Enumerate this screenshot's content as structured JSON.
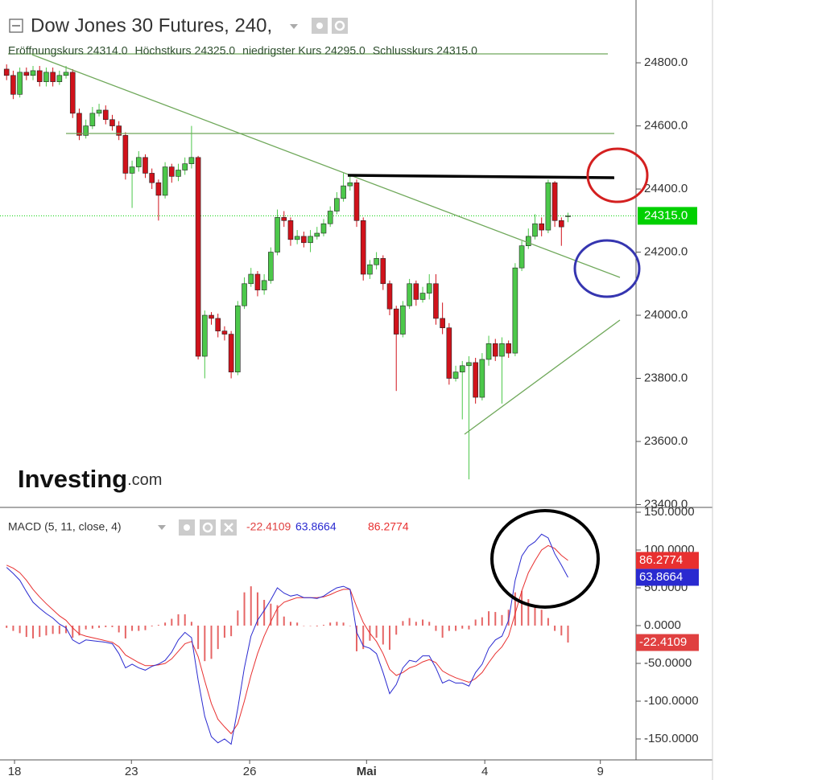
{
  "chart_data": [
    {
      "type": "candlestick",
      "title": "Dow Jones 30 Futures, 240,",
      "ohlc_legend": [
        {
          "label": "Eröffnungskurs",
          "value": "24314.0"
        },
        {
          "label": "Höchstkurs",
          "value": "24325.0"
        },
        {
          "label": "niedrigster Kurs",
          "value": "24295.0"
        },
        {
          "label": "Schlusskurs",
          "value": "24315.0"
        }
      ],
      "open": [
        24780,
        24760,
        24700,
        24770,
        24760,
        24775,
        24740,
        24770,
        24740,
        24760,
        24770,
        24640,
        24570,
        24600,
        24640,
        24650,
        24620,
        24600,
        24570,
        24450,
        24470,
        24500,
        24450,
        24420,
        24380,
        24470,
        24440,
        24460,
        24480,
        24500,
        23870,
        24000,
        23990,
        23950,
        23940,
        23820,
        24030,
        24100,
        24130,
        24080,
        24110,
        24200,
        24310,
        24300,
        24240,
        24250,
        24230,
        24250,
        24260,
        24290,
        24330,
        24370,
        24410,
        24420,
        24300,
        24130,
        24160,
        24180,
        24100,
        24020,
        23940,
        24030,
        24100,
        24050,
        24070,
        24100,
        23990,
        23960,
        23800,
        23820,
        23840,
        23850,
        23740,
        23860,
        23910,
        23870,
        23910,
        23880,
        24150,
        24220,
        24250,
        24290,
        24270,
        24420,
        24300,
        24314
      ],
      "high": [
        24795,
        24775,
        24785,
        24785,
        24790,
        24790,
        24785,
        24785,
        24775,
        24790,
        24780,
        24655,
        24620,
        24660,
        24670,
        24665,
        24635,
        24615,
        24580,
        24490,
        24520,
        24510,
        24465,
        24430,
        24485,
        24480,
        24480,
        24500,
        24600,
        24505,
        24015,
        24010,
        24005,
        23965,
        23950,
        24045,
        24120,
        24150,
        24140,
        24130,
        24215,
        24335,
        24330,
        24310,
        24270,
        24265,
        24270,
        24280,
        24305,
        24345,
        24390,
        24450,
        24440,
        24430,
        24310,
        24175,
        24200,
        24190,
        24110,
        24030,
        24045,
        24115,
        24110,
        24090,
        24130,
        24130,
        24040,
        23975,
        23840,
        23855,
        23870,
        23865,
        23880,
        23935,
        23925,
        23930,
        23920,
        24165,
        24235,
        24275,
        24320,
        24310,
        24430,
        24425,
        24310,
        24325
      ],
      "low": [
        24745,
        24685,
        24690,
        24745,
        24745,
        24725,
        24725,
        24725,
        24730,
        24750,
        24625,
        24555,
        24560,
        24590,
        24630,
        24605,
        24585,
        24555,
        24430,
        24340,
        24455,
        24435,
        24400,
        24300,
        24370,
        24420,
        24425,
        24445,
        24465,
        23860,
        23800,
        23970,
        23930,
        23920,
        23800,
        23810,
        24020,
        24090,
        24060,
        24065,
        24100,
        24190,
        24280,
        24220,
        24225,
        24215,
        24200,
        24240,
        24250,
        24280,
        24320,
        24360,
        24395,
        24280,
        24110,
        24115,
        24145,
        24080,
        24000,
        23760,
        23930,
        24020,
        24030,
        24040,
        24050,
        23970,
        23940,
        23780,
        23790,
        23670,
        23480,
        23720,
        23730,
        23840,
        23855,
        23720,
        23865,
        23870,
        24140,
        24210,
        24240,
        24250,
        24260,
        24280,
        24220,
        24295
      ],
      "close": [
        24760,
        24700,
        24770,
        24760,
        24775,
        24740,
        24770,
        24740,
        24760,
        24770,
        24640,
        24570,
        24600,
        24640,
        24650,
        24620,
        24600,
        24570,
        24450,
        24470,
        24500,
        24450,
        24420,
        24380,
        24470,
        24440,
        24460,
        24480,
        24500,
        23870,
        24000,
        23990,
        23950,
        23940,
        23820,
        24030,
        24100,
        24130,
        24080,
        24110,
        24200,
        24310,
        24300,
        24240,
        24250,
        24230,
        24250,
        24260,
        24290,
        24330,
        24370,
        24410,
        24420,
        24300,
        24130,
        24160,
        24180,
        24100,
        24020,
        23940,
        24030,
        24100,
        24050,
        24070,
        24100,
        23990,
        23960,
        23800,
        23820,
        23840,
        23850,
        23740,
        23860,
        23910,
        23870,
        23910,
        23880,
        24150,
        24220,
        24250,
        24290,
        24270,
        24420,
        24300,
        24280,
        24315
      ],
      "up_color": "#4cc84a",
      "down_color": "#d0121b",
      "xlim": [
        -1,
        95.3
      ],
      "ylim": [
        23391,
        24999
      ],
      "yticks": [
        {
          "value": 23400,
          "label": "23400.0"
        },
        {
          "value": 23600,
          "label": "23600.0"
        },
        {
          "value": 23800,
          "label": "23800.0"
        },
        {
          "value": 24000,
          "label": "24000.0"
        },
        {
          "value": 24200,
          "label": "24200.0"
        },
        {
          "value": 24400,
          "label": "24400.0"
        },
        {
          "value": 24600,
          "label": "24600.0"
        },
        {
          "value": 24800,
          "label": "24800.0"
        }
      ],
      "last_price": {
        "value": 24315,
        "label": "24315.0"
      },
      "last_price_color": "#00d000",
      "logo": "Investing",
      "logo_suffix": ".com"
    },
    {
      "type": "macd",
      "title": "MACD (5, 11, close, 4)",
      "histogram": {
        "color": "#e04040",
        "last_label": "-22.4109",
        "values": [
          -3,
          -7,
          -10,
          -15,
          -17,
          -15,
          -13,
          -11,
          -11,
          -10,
          -16,
          -13,
          -5,
          -4,
          -3,
          -2,
          -2,
          -9,
          -17,
          -7,
          -7,
          -6,
          -1,
          1,
          4,
          9,
          15,
          15,
          5,
          -31,
          -47,
          -44,
          -31,
          -16,
          -14,
          20,
          44,
          52,
          44,
          34,
          29,
          27,
          12,
          5,
          4,
          0,
          0,
          -1,
          1,
          4,
          5,
          4,
          0,
          -34,
          -31,
          -20,
          -16,
          -25,
          -32,
          -12,
          6,
          10,
          5,
          8,
          5,
          -7,
          -16,
          -7,
          -7,
          -4,
          -5,
          8,
          11,
          19,
          18,
          14,
          21,
          44,
          46,
          35,
          25,
          21,
          10,
          -7,
          -13,
          -22.4109
        ]
      },
      "macd": {
        "color": "#2a2ad0",
        "last_label": "63.8664",
        "values": [
          77,
          69,
          60,
          45,
          31,
          23,
          16,
          10,
          2,
          -3,
          -19,
          -24,
          -19,
          -20,
          -21,
          -22,
          -24,
          -37,
          -56,
          -51,
          -56,
          -59,
          -54,
          -51,
          -46,
          -35,
          -19,
          -9,
          -16,
          -72,
          -120,
          -147,
          -155,
          -150,
          -157,
          -110,
          -56,
          -14,
          7,
          20,
          34,
          50,
          43,
          39,
          41,
          37,
          37,
          36,
          39,
          45,
          50,
          52,
          48,
          -9,
          -27,
          -30,
          -37,
          -62,
          -90,
          -78,
          -56,
          -46,
          -48,
          -40,
          -40,
          -56,
          -76,
          -72,
          -76,
          -76,
          -80,
          -62,
          -51,
          -30,
          -19,
          -14,
          7,
          60,
          92,
          105,
          111,
          121,
          116,
          95,
          80,
          63.8664
        ]
      },
      "signal": {
        "color": "#e83030",
        "last_label": "86.2774",
        "values": [
          80,
          76,
          70,
          60,
          48,
          38,
          29,
          21,
          13,
          7,
          -3,
          -11,
          -14,
          -16,
          -18,
          -20,
          -22,
          -28,
          -39,
          -44,
          -49,
          -53,
          -53,
          -52,
          -50,
          -44,
          -34,
          -24,
          -21,
          -41,
          -73,
          -103,
          -124,
          -134,
          -143,
          -130,
          -100,
          -66,
          -37,
          -14,
          5,
          23,
          31,
          34,
          37,
          37,
          37,
          37,
          38,
          41,
          45,
          48,
          48,
          25,
          4,
          -10,
          -21,
          -37,
          -58,
          -66,
          -62,
          -56,
          -53,
          -48,
          -45,
          -49,
          -60,
          -65,
          -69,
          -72,
          -75,
          -70,
          -62,
          -49,
          -37,
          -28,
          -14,
          16,
          46,
          70,
          86,
          100,
          106,
          102,
          93,
          86.2774
        ]
      },
      "xlim": [
        -1,
        95.3
      ],
      "ylim": [
        -177.7,
        156.4
      ],
      "yticks": [
        {
          "value": -150,
          "label": "-150.0000"
        },
        {
          "value": -100,
          "label": "-100.0000"
        },
        {
          "value": -50,
          "label": "-50.0000"
        },
        {
          "value": 0,
          "label": "0.0000"
        },
        {
          "value": 50,
          "label": "50.0000"
        },
        {
          "value": 100,
          "label": "100.0000"
        },
        {
          "value": 150,
          "label": "150.0000"
        }
      ],
      "xticks": [
        {
          "value": 1.2,
          "label": "18"
        },
        {
          "value": 18.9,
          "label": "23"
        },
        {
          "value": 36.8,
          "label": "26"
        },
        {
          "value": 54.5,
          "label": "Mai"
        },
        {
          "value": 72.4,
          "label": "4"
        },
        {
          "value": 89.9,
          "label": "9"
        }
      ]
    }
  ]
}
